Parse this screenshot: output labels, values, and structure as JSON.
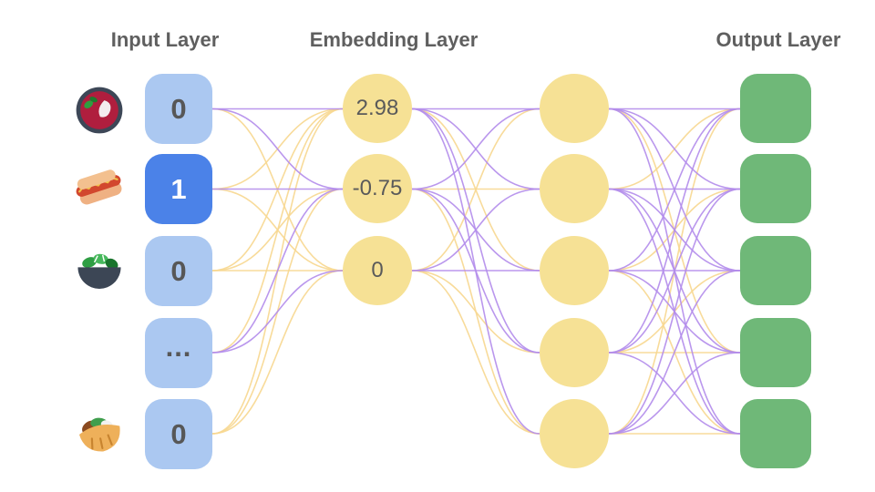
{
  "titles": {
    "input": "Input Layer",
    "embedding": "Embedding Layer",
    "output": "Output Layer"
  },
  "colors": {
    "node_light_blue": "#abc8f1",
    "node_active_blue": "#4b82e8",
    "node_yellow": "#f6e195",
    "node_green": "#6fb878",
    "edge_purple": "#b38ceb",
    "edge_gold": "#f7d78f",
    "title_gray": "#5f5f5f",
    "value_gray": "#575757"
  },
  "input_nodes": [
    {
      "icon": "soup-bowl-emoji-icon",
      "value": "0",
      "active": false
    },
    {
      "icon": "hot-dog-emoji-icon",
      "value": "1",
      "active": true
    },
    {
      "icon": "salad-emoji-icon",
      "value": "0",
      "active": false
    },
    {
      "icon": null,
      "value": "...",
      "active": false
    },
    {
      "icon": "pita-emoji-icon",
      "value": "0",
      "active": false
    }
  ],
  "embedding_nodes": [
    {
      "value": "2.98"
    },
    {
      "value": "-0.75"
    },
    {
      "value": "0"
    }
  ],
  "hidden_node_count": 5,
  "output_node_count": 5,
  "edges": {
    "input_to_embedding": [
      [
        "purple",
        "purple",
        "gold"
      ],
      [
        "gold",
        "purple",
        "gold"
      ],
      [
        "gold",
        "gold",
        "gold"
      ],
      [
        "gold",
        "purple",
        "purple"
      ],
      [
        "gold",
        "gold",
        "gold"
      ]
    ],
    "embedding_to_hidden": [
      [
        "purple",
        "purple",
        "gold",
        "purple",
        "purple"
      ],
      [
        "purple",
        "gold",
        "purple",
        "purple",
        "gold"
      ],
      [
        "gold",
        "purple",
        "purple",
        "gold",
        "gold"
      ]
    ],
    "hidden_to_output": [
      [
        "purple",
        "purple",
        "purple",
        "gold",
        "purple"
      ],
      [
        "gold",
        "purple",
        "purple",
        "purple",
        "purple"
      ],
      [
        "purple",
        "gold",
        "purple",
        "purple",
        "gold"
      ],
      [
        "purple",
        "purple",
        "gold",
        "gold",
        "purple"
      ],
      [
        "gold",
        "purple",
        "purple",
        "purple",
        "gold"
      ]
    ]
  }
}
